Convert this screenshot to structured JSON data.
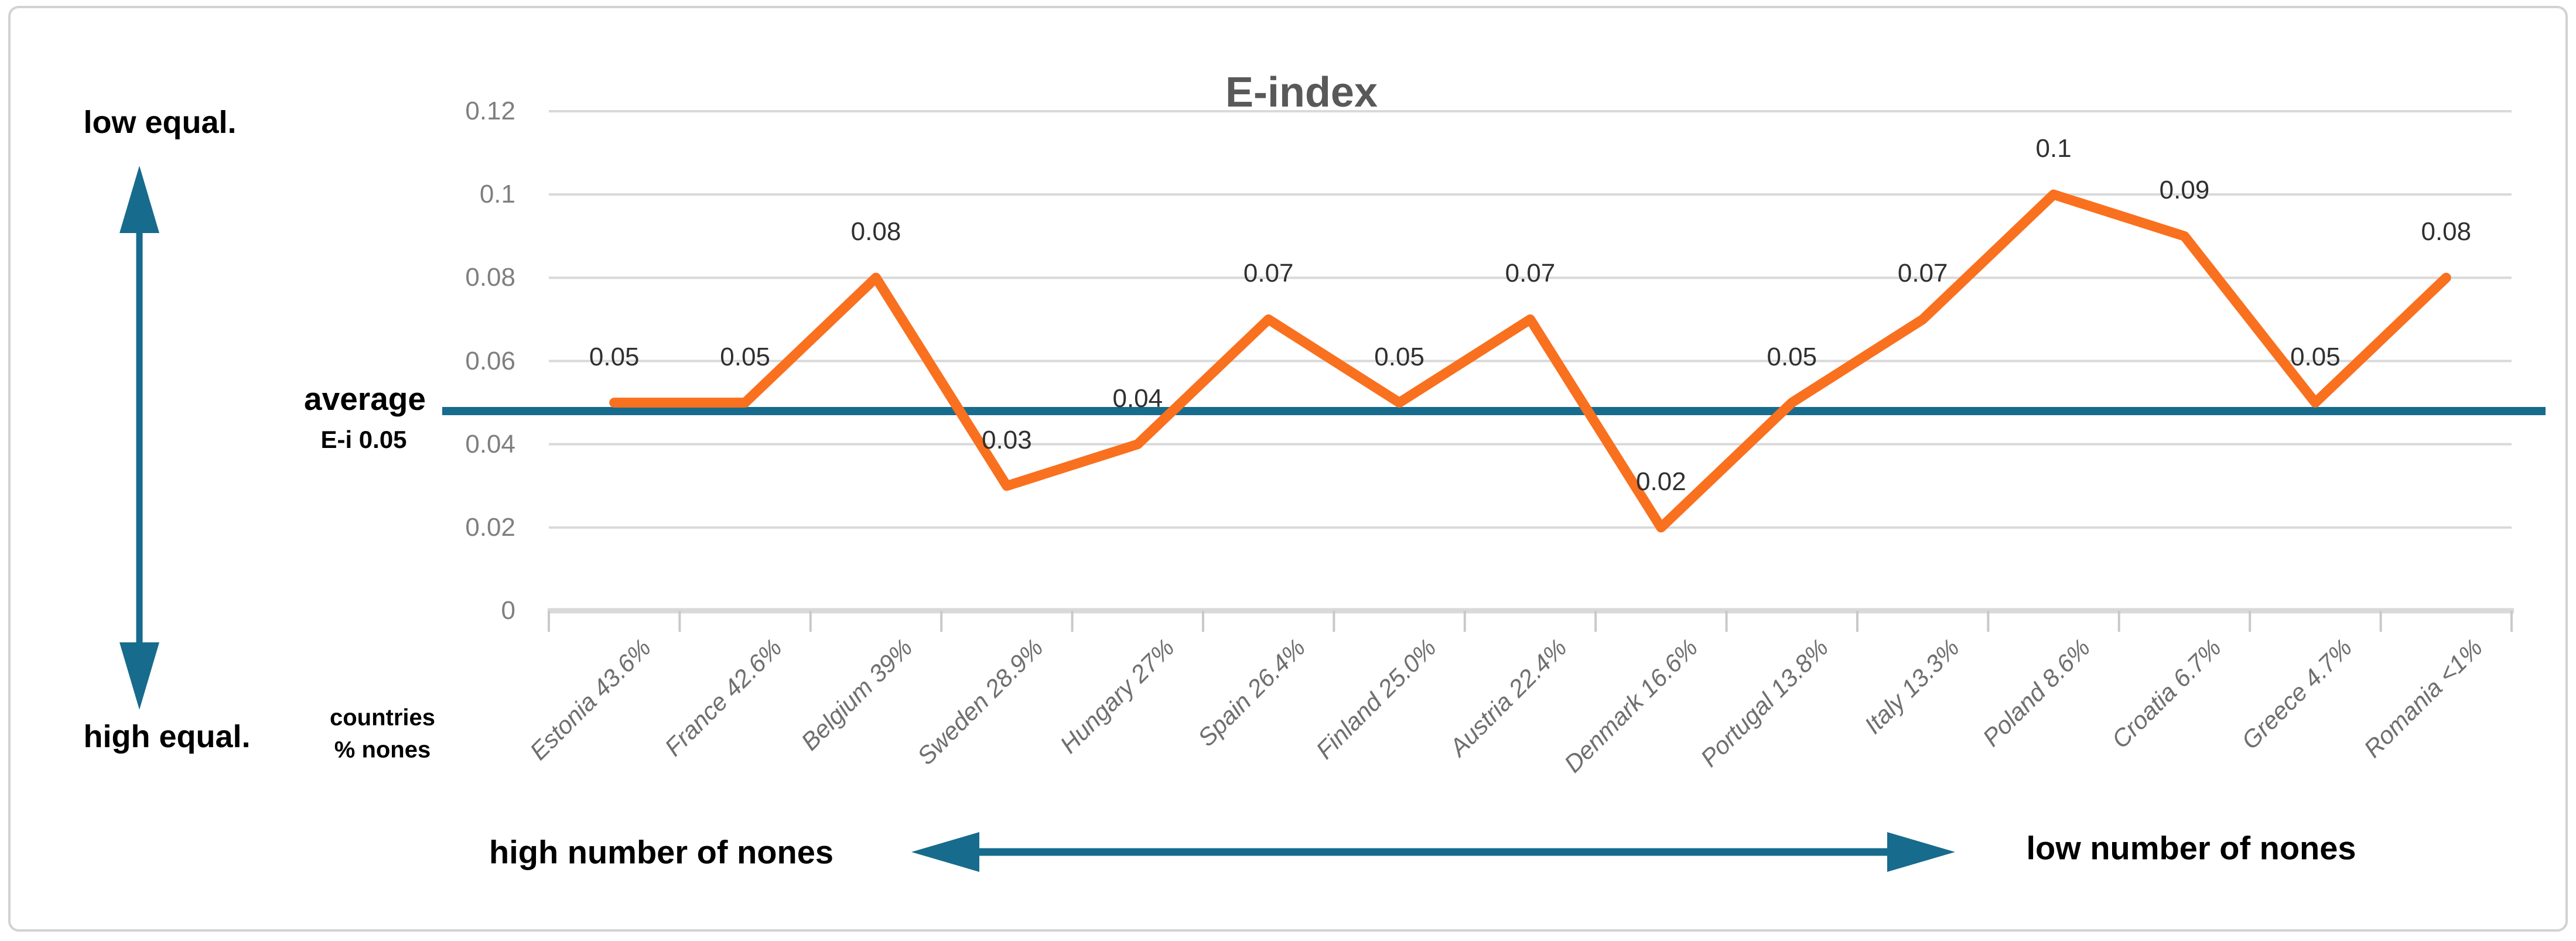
{
  "chart_data": {
    "type": "line",
    "title": "E-index",
    "categories": [
      "Estonia 43.6%",
      "France 42.6%",
      "Belgium 39%",
      "Sweden 28.9%",
      "Hungary 27%",
      "Spain 26.4%",
      "Finland 25.0%",
      "Austria 22.4%",
      "Denmark 16.6%",
      "Portugal 13.8%",
      "Italy 13.3%",
      "Poland 8.6%",
      "Croatia 6.7%",
      "Greece 4.7%",
      "Romania <1%"
    ],
    "series": [
      {
        "name": "E-index",
        "values": [
          0.05,
          0.05,
          0.08,
          0.03,
          0.04,
          0.07,
          0.05,
          0.07,
          0.02,
          0.05,
          0.07,
          0.1,
          0.09,
          0.05,
          0.08
        ]
      }
    ],
    "data_labels": [
      "0.05",
      "0.05",
      "0.08",
      "0.03",
      "0.04",
      "0.07",
      "0.05",
      "0.07",
      "0.02",
      "0.05",
      "0.07",
      "0.1",
      "0.09",
      "0.05",
      "0.08"
    ],
    "average_line": {
      "value": 0.05,
      "label_line1": "average",
      "label_line2": "E-i 0.05"
    },
    "y_ticks": [
      "0.12",
      "0.1",
      "0.08",
      "0.06",
      "0.04",
      "0.02",
      "0"
    ],
    "ylim": [
      0,
      0.12
    ],
    "grid": "horizontal",
    "legend": "none",
    "colors": {
      "line": "#f9701f",
      "average_line": "#176b8d",
      "grid": "#d9d9d9",
      "title": "#595959",
      "axis_labels": "#7f7f7f"
    }
  },
  "annotations": {
    "low_equal": "low equal.",
    "high_equal": "high equal.",
    "countries_line1": "countries",
    "countries_line2": "% nones",
    "high_nones": "high number of nones",
    "low_nones": "low number of nones"
  }
}
